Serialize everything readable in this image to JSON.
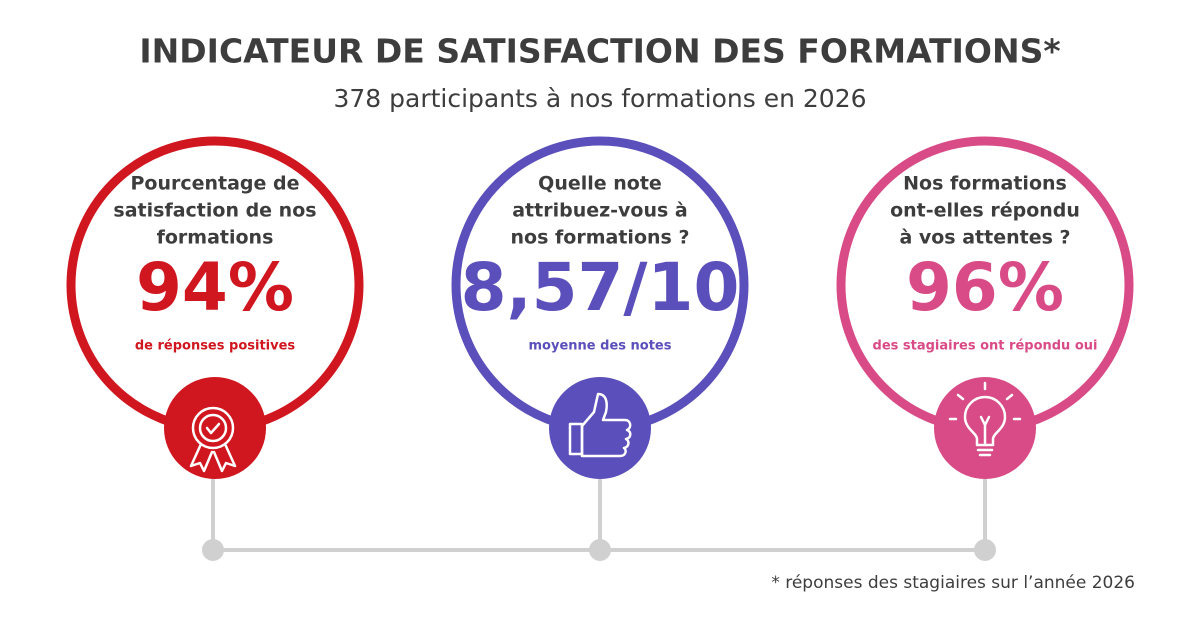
{
  "header": {
    "title": "INDICATEUR DE SATISFACTION DES FORMATIONS*",
    "subtitle": "378 participants à nos formations en 2026"
  },
  "cards": [
    {
      "question": [
        "Pourcentage de",
        "satisfaction de nos",
        "formations"
      ],
      "value": "94%",
      "caption": "de réponses positives"
    },
    {
      "question": [
        "Quelle note",
        "attribuez-vous à",
        "nos formations ?"
      ],
      "value": "8,57/10",
      "caption": "moyenne des notes"
    },
    {
      "question": [
        "Nos formations",
        "ont-elles répondu",
        "à vos attentes ?"
      ],
      "value": "96%",
      "caption": "des stagiaires ont répondu oui"
    }
  ],
  "footnote": "* réponses des stagiaires sur l’année 2026"
}
